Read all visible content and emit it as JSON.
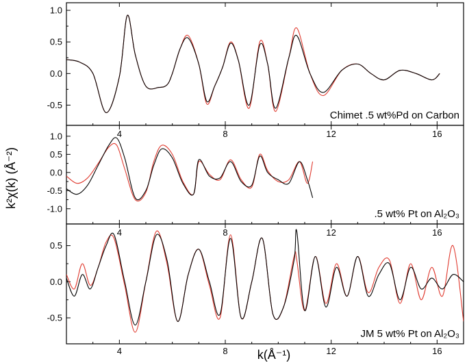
{
  "figure": {
    "xlabel": "k(Å⁻¹)",
    "ylabel": "k²χ(k) (Å⁻²)"
  },
  "chart_data": [
    {
      "type": "line",
      "label": "Chimet .5 wt%Pd on Carbon",
      "xlim": [
        2.0,
        17.0
      ],
      "ylim": [
        -0.82,
        1.12
      ],
      "x_ticks": [
        "4",
        "8",
        "12",
        "16"
      ],
      "x_tick_values": [
        4,
        8,
        12,
        16
      ],
      "y_ticks": [
        "1.0",
        "0.5",
        "0.0",
        "-0.5"
      ],
      "y_tick_values": [
        1.0,
        0.5,
        0.0,
        -0.5
      ],
      "series": [
        {
          "color": "#000000",
          "x": [
            2.0,
            2.5,
            3.0,
            3.5,
            4.0,
            4.3,
            4.6,
            5.0,
            5.5,
            5.8,
            6.0,
            6.3,
            6.6,
            7.0,
            7.3,
            7.6,
            7.9,
            8.2,
            8.5,
            8.9,
            9.3,
            9.6,
            9.9,
            10.4,
            10.7,
            11.2,
            11.7,
            12.4,
            13.0,
            13.5,
            14.0,
            14.6,
            15.2,
            15.8,
            16.1
          ],
          "y": [
            0.22,
            0.18,
            0.0,
            -0.62,
            -0.05,
            0.92,
            0.3,
            -0.2,
            -0.22,
            -0.18,
            0.0,
            0.4,
            0.56,
            0.15,
            -0.44,
            -0.2,
            0.1,
            0.48,
            0.2,
            -0.5,
            0.45,
            0.15,
            -0.55,
            0.25,
            0.6,
            0.0,
            -0.3,
            0.05,
            0.15,
            0.0,
            -0.1,
            0.05,
            0.0,
            -0.1,
            0.0
          ]
        },
        {
          "color": "#e03a2f",
          "x": [
            2.0,
            2.5,
            3.0,
            3.5,
            4.0,
            4.3,
            4.6,
            5.0,
            5.5,
            5.8,
            6.0,
            6.3,
            6.6,
            7.0,
            7.3,
            7.6,
            7.9,
            8.2,
            8.5,
            8.9,
            9.3,
            9.6,
            9.9,
            10.4,
            10.7,
            11.2,
            11.7,
            12.4,
            13.0,
            13.5,
            14.0,
            14.6,
            15.2,
            15.8,
            16.1
          ],
          "y": [
            0.22,
            0.18,
            0.0,
            -0.62,
            -0.05,
            0.92,
            0.3,
            -0.2,
            -0.22,
            -0.18,
            0.0,
            0.4,
            0.6,
            0.15,
            -0.48,
            -0.2,
            0.1,
            0.5,
            0.2,
            -0.55,
            0.5,
            0.15,
            -0.6,
            0.25,
            0.72,
            0.0,
            -0.35,
            0.05,
            0.15,
            0.0,
            -0.1,
            0.05,
            0.0,
            -0.1,
            0.0
          ]
        }
      ]
    },
    {
      "type": "line",
      "label": ".5 wt% Pt on Al₂O₃",
      "xlim": [
        2.0,
        17.0
      ],
      "ylim": [
        -1.42,
        1.3
      ],
      "x_ticks": [
        "4",
        "8",
        "12",
        "16"
      ],
      "x_tick_values": [
        4,
        8,
        12,
        16
      ],
      "y_ticks": [
        "1.0",
        "0.5",
        "0.0",
        "-0.5",
        "-1.0"
      ],
      "y_tick_values": [
        1.0,
        0.5,
        0.0,
        -0.5,
        -1.0
      ],
      "series": [
        {
          "color": "#000000",
          "x": [
            2.0,
            2.4,
            2.8,
            3.2,
            3.6,
            3.9,
            4.2,
            4.6,
            5.0,
            5.3,
            5.6,
            6.0,
            6.4,
            6.8,
            7.0,
            7.4,
            7.8,
            8.2,
            8.6,
            9.0,
            9.3,
            9.6,
            10.0,
            10.4,
            10.8,
            11.1,
            11.3
          ],
          "y": [
            -0.45,
            -0.6,
            -0.35,
            0.2,
            0.75,
            0.95,
            0.4,
            -0.7,
            -0.5,
            0.2,
            0.65,
            0.4,
            -0.3,
            -0.6,
            0.35,
            -0.1,
            -0.15,
            0.3,
            -0.25,
            -0.35,
            0.45,
            0.0,
            -0.2,
            -0.3,
            0.3,
            -0.2,
            -0.7
          ]
        },
        {
          "color": "#e03a2f",
          "x": [
            2.0,
            2.4,
            2.8,
            3.2,
            3.6,
            3.9,
            4.2,
            4.6,
            5.0,
            5.3,
            5.6,
            6.0,
            6.4,
            6.8,
            7.0,
            7.4,
            7.8,
            8.2,
            8.6,
            9.0,
            9.3,
            9.6,
            10.0,
            10.4,
            10.8,
            11.1,
            11.3
          ],
          "y": [
            -0.1,
            -0.3,
            -0.15,
            0.25,
            0.7,
            0.75,
            0.1,
            -0.75,
            -0.55,
            0.3,
            0.75,
            0.5,
            -0.25,
            -0.6,
            0.3,
            -0.05,
            -0.2,
            0.35,
            -0.2,
            -0.4,
            0.5,
            0.05,
            -0.25,
            -0.2,
            0.3,
            -0.3,
            0.3
          ]
        }
      ]
    },
    {
      "type": "line",
      "label": "JM 5 wt% Pt on Al₂O₃",
      "xlim": [
        2.0,
        17.0
      ],
      "ylim": [
        -0.86,
        0.8
      ],
      "x_ticks": [
        "4",
        "8",
        "12",
        "16"
      ],
      "x_tick_values": [
        4,
        8,
        12,
        16
      ],
      "y_ticks": [
        "0.5",
        "0.0",
        "-0.5"
      ],
      "y_tick_values": [
        0.5,
        0.0,
        -0.5
      ],
      "series": [
        {
          "color": "#000000",
          "x": [
            2.0,
            2.3,
            2.6,
            2.9,
            3.2,
            3.5,
            3.8,
            4.2,
            4.6,
            5.0,
            5.4,
            5.8,
            6.2,
            6.6,
            7.0,
            7.4,
            7.8,
            8.2,
            8.6,
            9.0,
            9.4,
            9.8,
            10.2,
            10.6,
            10.7,
            11.0,
            11.4,
            11.8,
            12.2,
            12.6,
            13.0,
            13.4,
            13.8,
            14.2,
            14.6,
            15.0,
            15.4,
            15.8,
            16.2,
            16.6,
            17.0
          ],
          "y": [
            0.05,
            -0.2,
            0.1,
            -0.1,
            0.2,
            0.5,
            0.65,
            0.0,
            -0.6,
            0.0,
            0.65,
            0.3,
            -0.55,
            0.1,
            0.45,
            0.0,
            -0.45,
            0.6,
            -0.5,
            0.0,
            0.6,
            -0.45,
            -0.35,
            0.3,
            0.7,
            -0.4,
            0.35,
            -0.35,
            0.2,
            -0.2,
            0.35,
            -0.2,
            0.1,
            0.25,
            -0.25,
            0.2,
            -0.1,
            0.05,
            -0.1,
            0.1,
            0.0
          ]
        },
        {
          "color": "#e03a2f",
          "x": [
            2.0,
            2.3,
            2.6,
            2.9,
            3.2,
            3.5,
            3.8,
            4.2,
            4.6,
            5.0,
            5.4,
            5.8,
            6.2,
            6.6,
            7.0,
            7.4,
            7.8,
            8.2,
            8.6,
            9.0,
            9.4,
            9.8,
            10.2,
            10.6,
            10.7,
            11.0,
            11.4,
            11.8,
            12.2,
            12.6,
            13.0,
            13.4,
            13.8,
            14.2,
            14.6,
            15.0,
            15.4,
            15.8,
            16.2,
            16.6,
            17.0
          ],
          "y": [
            0.1,
            -0.1,
            0.25,
            -0.05,
            0.2,
            0.55,
            0.6,
            -0.05,
            -0.7,
            0.0,
            0.7,
            0.25,
            -0.55,
            0.1,
            0.45,
            -0.05,
            -0.5,
            0.65,
            -0.5,
            0.0,
            0.6,
            -0.45,
            -0.35,
            0.35,
            0.3,
            -0.4,
            0.35,
            -0.3,
            0.25,
            -0.2,
            0.35,
            -0.15,
            0.2,
            0.3,
            -0.3,
            0.25,
            -0.25,
            0.2,
            -0.2,
            0.5,
            -0.55
          ]
        }
      ]
    }
  ]
}
